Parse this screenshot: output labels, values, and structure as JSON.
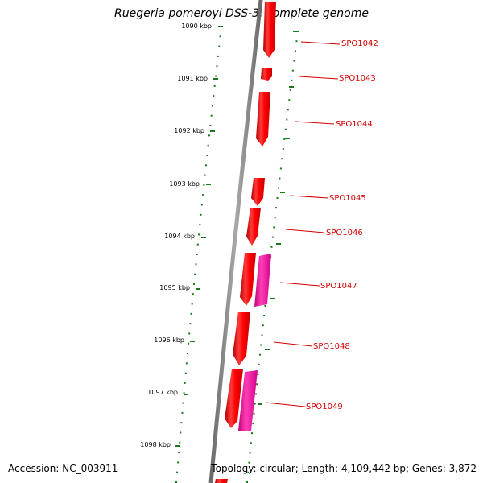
{
  "title": "Ruegeria pomeroyi DSS-3, complete genome",
  "footer": {
    "accession": "Accession: NC_003911",
    "summary": "Topology: circular; Length: 4,109,442 bp; Genes: 3,872"
  },
  "ruler": {
    "ticks": [
      "1090 kbp",
      "1091 kbp",
      "1092 kbp",
      "1093 kbp",
      "1094 kbp",
      "1095 kbp",
      "1096 kbp",
      "1097 kbp",
      "1098 kbp"
    ]
  },
  "genes": [
    {
      "label": "SPO1042"
    },
    {
      "label": "SPO1043"
    },
    {
      "label": "SPO1044"
    },
    {
      "label": "SPO1045"
    },
    {
      "label": "SPO1046"
    },
    {
      "label": "SPO1047"
    },
    {
      "label": "SPO1048"
    },
    {
      "label": "SPO1049"
    }
  ],
  "colors": {
    "backbone": "#8c8c8c",
    "gene_red": "#ff0000",
    "gene_pink": "#ff1aa0",
    "tick_green": "#1a7a1a",
    "label_red": "#d40000"
  }
}
